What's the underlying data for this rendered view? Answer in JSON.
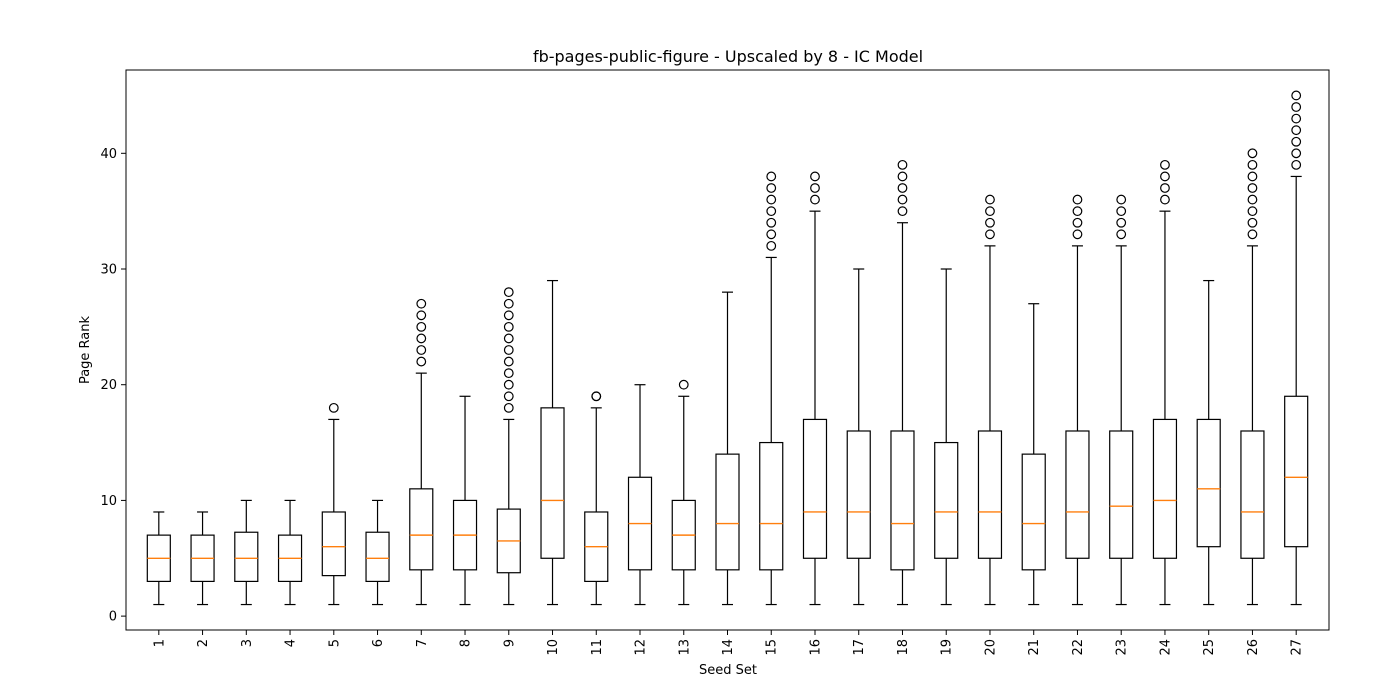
{
  "chart_data": {
    "type": "boxplot",
    "title": "fb-pages-public-figure - Upscaled by 8 - IC Model",
    "xlabel": "Seed Set",
    "ylabel": "Page Rank",
    "ylim": [
      -1.2,
      47.2
    ],
    "yticks": [
      0,
      10,
      20,
      30,
      40
    ],
    "grid": false,
    "colors": {
      "box": "#000000",
      "median": "#ff7f0e",
      "flier": "#000000",
      "background": "#ffffff"
    },
    "categories": [
      "1",
      "2",
      "3",
      "4",
      "5",
      "6",
      "7",
      "8",
      "9",
      "10",
      "11",
      "12",
      "13",
      "14",
      "15",
      "16",
      "17",
      "18",
      "19",
      "20",
      "21",
      "22",
      "23",
      "24",
      "25",
      "26",
      "27"
    ],
    "boxes": [
      {
        "whislo": 1,
        "q1": 3,
        "med": 5,
        "q3": 7,
        "whishi": 9,
        "fliers": []
      },
      {
        "whislo": 1,
        "q1": 3,
        "med": 5,
        "q3": 7,
        "whishi": 9,
        "fliers": []
      },
      {
        "whislo": 1,
        "q1": 3,
        "med": 5,
        "q3": 7.25,
        "whishi": 10,
        "fliers": []
      },
      {
        "whislo": 1,
        "q1": 3,
        "med": 5,
        "q3": 7,
        "whishi": 10,
        "fliers": []
      },
      {
        "whislo": 1,
        "q1": 3.5,
        "med": 6,
        "q3": 9,
        "whishi": 17,
        "fliers": [
          18
        ]
      },
      {
        "whislo": 1,
        "q1": 3,
        "med": 5,
        "q3": 7.25,
        "whishi": 10,
        "fliers": []
      },
      {
        "whislo": 1,
        "q1": 4,
        "med": 7,
        "q3": 11,
        "whishi": 21,
        "fliers": [
          22,
          23,
          24,
          25,
          26,
          27
        ]
      },
      {
        "whislo": 1,
        "q1": 4,
        "med": 7,
        "q3": 10,
        "whishi": 19,
        "fliers": []
      },
      {
        "whislo": 1,
        "q1": 3.75,
        "med": 6.5,
        "q3": 9.25,
        "whishi": 17,
        "fliers": [
          18,
          19,
          20,
          21,
          22,
          23,
          24,
          25,
          26,
          27,
          28
        ]
      },
      {
        "whislo": 1,
        "q1": 5,
        "med": 10,
        "q3": 18,
        "whishi": 29,
        "fliers": []
      },
      {
        "whislo": 1,
        "q1": 3,
        "med": 6,
        "q3": 9,
        "whishi": 18,
        "fliers": [
          19,
          19
        ]
      },
      {
        "whislo": 1,
        "q1": 4,
        "med": 8,
        "q3": 12,
        "whishi": 20,
        "fliers": []
      },
      {
        "whislo": 1,
        "q1": 4,
        "med": 7,
        "q3": 10,
        "whishi": 19,
        "fliers": [
          20
        ]
      },
      {
        "whislo": 1,
        "q1": 4,
        "med": 8,
        "q3": 14,
        "whishi": 28,
        "fliers": []
      },
      {
        "whislo": 1,
        "q1": 4,
        "med": 8,
        "q3": 15,
        "whishi": 31,
        "fliers": [
          32,
          33,
          34,
          35,
          36,
          37,
          38
        ]
      },
      {
        "whislo": 1,
        "q1": 5,
        "med": 9,
        "q3": 17,
        "whishi": 35,
        "fliers": [
          36,
          37,
          38
        ]
      },
      {
        "whislo": 1,
        "q1": 5,
        "med": 9,
        "q3": 16,
        "whishi": 30,
        "fliers": []
      },
      {
        "whislo": 1,
        "q1": 4,
        "med": 8,
        "q3": 16,
        "whishi": 34,
        "fliers": [
          35,
          36,
          37,
          38,
          39
        ]
      },
      {
        "whislo": 1,
        "q1": 5,
        "med": 9,
        "q3": 15,
        "whishi": 30,
        "fliers": []
      },
      {
        "whislo": 1,
        "q1": 5,
        "med": 9,
        "q3": 16,
        "whishi": 32,
        "fliers": [
          33,
          34,
          35,
          36
        ]
      },
      {
        "whislo": 1,
        "q1": 4,
        "med": 8,
        "q3": 14,
        "whishi": 27,
        "fliers": []
      },
      {
        "whislo": 1,
        "q1": 5,
        "med": 9,
        "q3": 16,
        "whishi": 32,
        "fliers": [
          33,
          34,
          35,
          36
        ]
      },
      {
        "whislo": 1,
        "q1": 5,
        "med": 9.5,
        "q3": 16,
        "whishi": 32,
        "fliers": [
          33,
          34,
          35,
          36
        ]
      },
      {
        "whislo": 1,
        "q1": 5,
        "med": 10,
        "q3": 17,
        "whishi": 35,
        "fliers": [
          36,
          37,
          38,
          39
        ]
      },
      {
        "whislo": 1,
        "q1": 6,
        "med": 11,
        "q3": 17,
        "whishi": 29,
        "fliers": []
      },
      {
        "whislo": 1,
        "q1": 5,
        "med": 9,
        "q3": 16,
        "whishi": 32,
        "fliers": [
          33,
          34,
          35,
          36,
          37,
          38,
          39,
          40
        ]
      },
      {
        "whislo": 1,
        "q1": 6,
        "med": 12,
        "q3": 19,
        "whishi": 38,
        "fliers": [
          39,
          40,
          41,
          42,
          43,
          44,
          45
        ]
      }
    ]
  }
}
